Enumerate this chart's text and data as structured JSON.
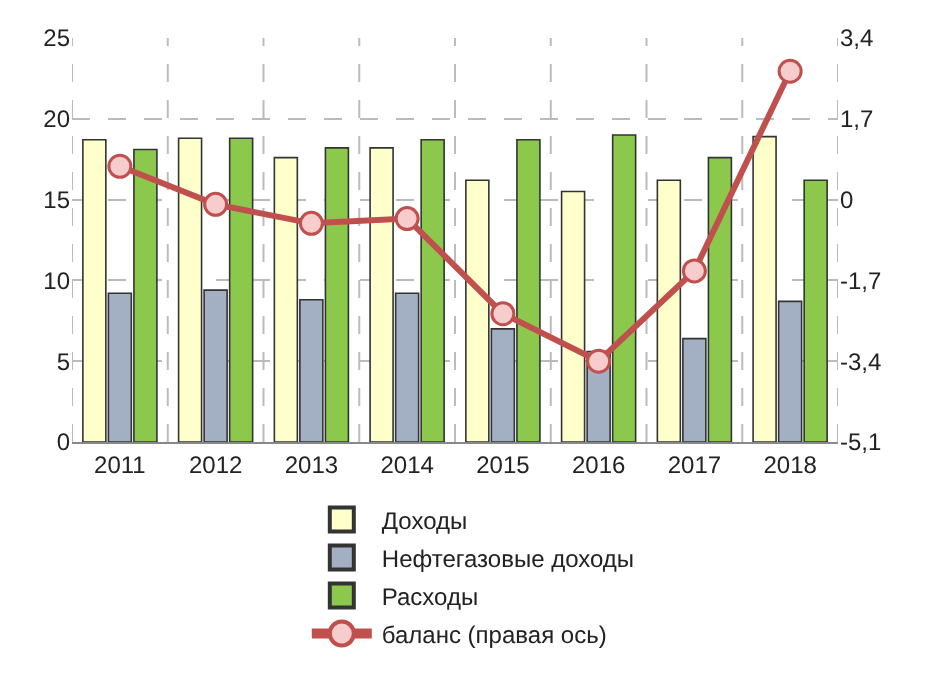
{
  "chart_data": {
    "type": "bar",
    "categories": [
      "2011",
      "2012",
      "2013",
      "2014",
      "2015",
      "2016",
      "2017",
      "2018"
    ],
    "series": [
      {
        "name": "Доходы",
        "color": "#ffffcc",
        "values": [
          18.7,
          18.8,
          17.6,
          18.2,
          16.2,
          15.5,
          16.2,
          18.9
        ]
      },
      {
        "name": "Нефтегазовые доходы",
        "color": "#a3b0c4",
        "values": [
          9.2,
          9.4,
          8.8,
          9.2,
          7.0,
          5.6,
          6.4,
          8.7
        ]
      },
      {
        "name": "Расходы",
        "color": "#8cc84b",
        "values": [
          18.1,
          18.8,
          18.2,
          18.7,
          18.7,
          19.0,
          17.6,
          16.2
        ]
      },
      {
        "name": "баланс (правая ось)",
        "type": "line",
        "axis": "y2",
        "color": "#c0504d",
        "marker": "circle",
        "values": [
          0.7,
          -0.1,
          -0.5,
          -0.4,
          -2.4,
          -3.4,
          -1.5,
          2.7
        ]
      }
    ],
    "ylim": [
      0,
      25
    ],
    "yticks": [
      0,
      5,
      10,
      15,
      20,
      25
    ],
    "y2lim": [
      -5.1,
      3.4
    ],
    "y2ticks": [
      {
        "value": -5.1,
        "label": "-5,1"
      },
      {
        "value": -3.4,
        "label": "-3,4"
      },
      {
        "value": -1.7,
        "label": "-1,7"
      },
      {
        "value": 0,
        "label": "0"
      },
      {
        "value": 1.7,
        "label": "1,7"
      },
      {
        "value": 3.4,
        "label": "3,4"
      }
    ],
    "grid": true,
    "legend": "bottom"
  }
}
